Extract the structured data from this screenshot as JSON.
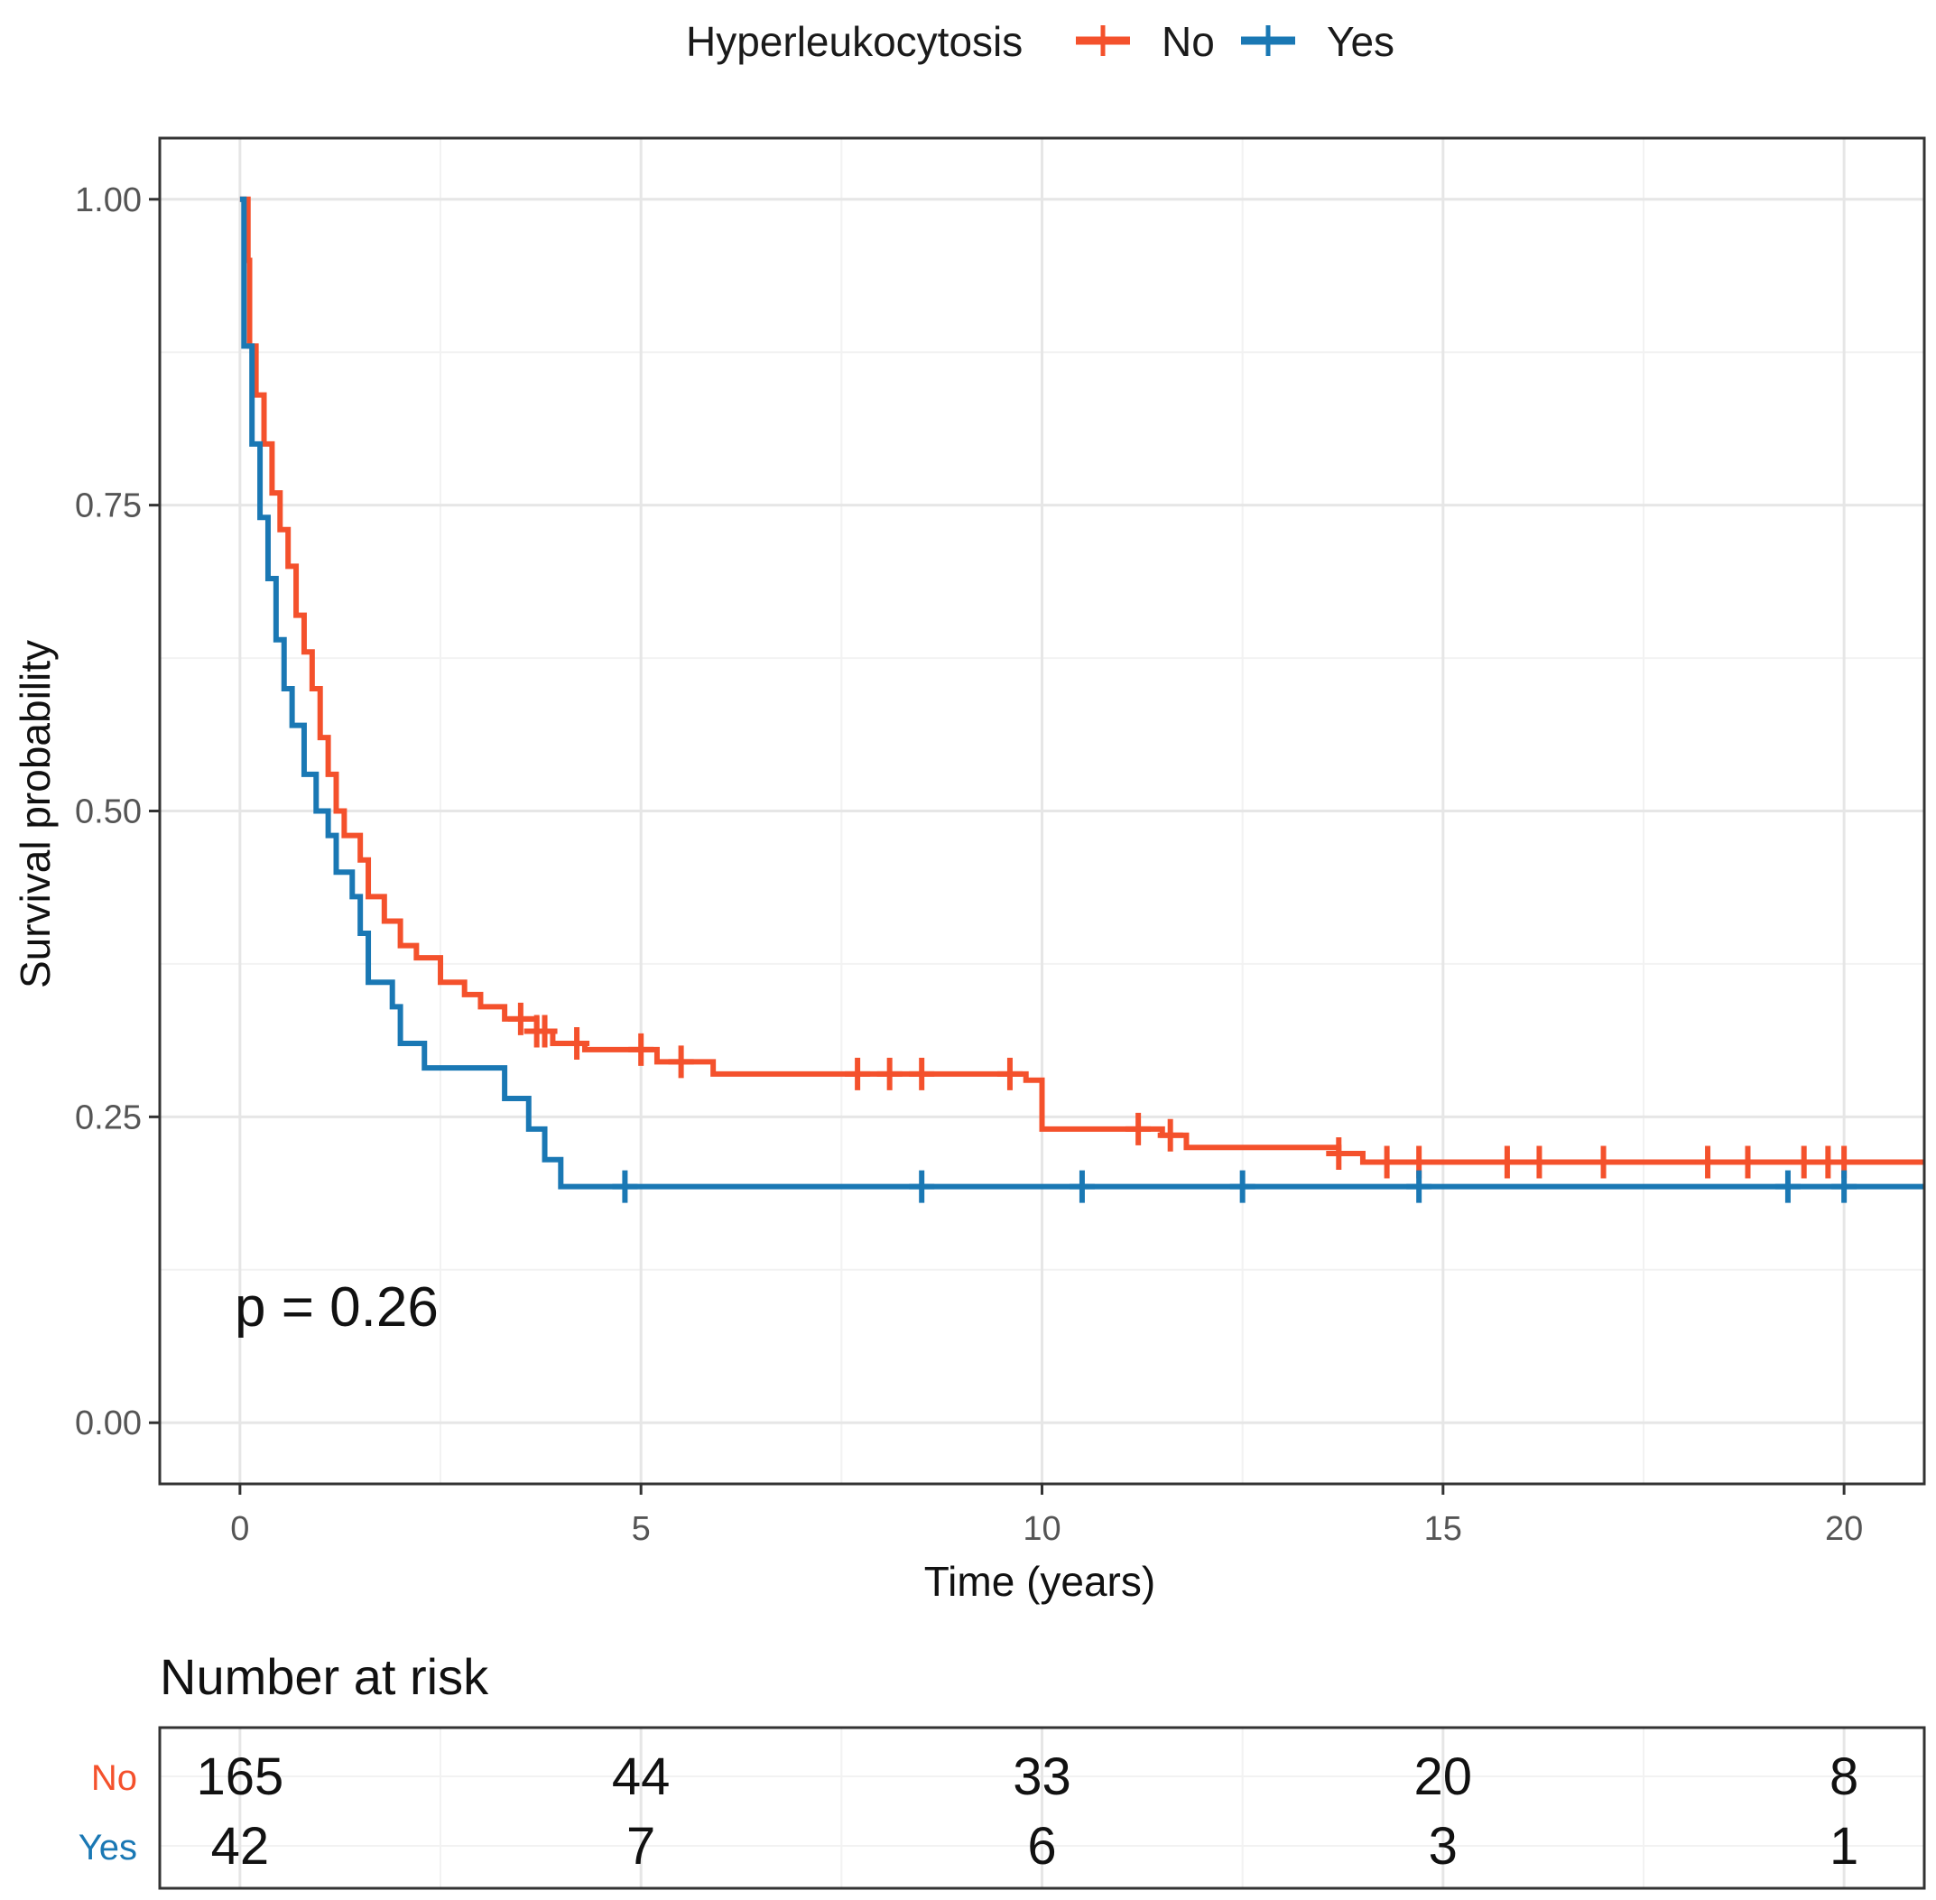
{
  "chart_data": {
    "type": "line",
    "subtype": "kaplan-meier",
    "legend": {
      "title": "Hyperleukocytosis",
      "position": "top",
      "entries": [
        "No",
        "Yes"
      ]
    },
    "xlabel": "Time (years)",
    "ylabel": "Survival probability",
    "xlim": [
      -1,
      21
    ],
    "ylim": [
      -0.05,
      1.05
    ],
    "x_ticks": [
      0,
      5,
      10,
      15,
      20
    ],
    "y_ticks": [
      0,
      0.25,
      0.5,
      0.75,
      1
    ],
    "y_tick_labels": [
      "0.00",
      "0.25",
      "0.50",
      "0.75",
      "1.00"
    ],
    "grid": true,
    "annotation": "p = 0.26",
    "series": [
      {
        "name": "No",
        "color": "#f4512c",
        "steps": [
          [
            0,
            1.0
          ],
          [
            0.1,
            0.95
          ],
          [
            0.12,
            0.88
          ],
          [
            0.2,
            0.84
          ],
          [
            0.3,
            0.8
          ],
          [
            0.4,
            0.76
          ],
          [
            0.5,
            0.73
          ],
          [
            0.6,
            0.7
          ],
          [
            0.7,
            0.66
          ],
          [
            0.8,
            0.63
          ],
          [
            0.9,
            0.6
          ],
          [
            1.0,
            0.56
          ],
          [
            1.1,
            0.53
          ],
          [
            1.2,
            0.5
          ],
          [
            1.3,
            0.48
          ],
          [
            1.5,
            0.46
          ],
          [
            1.6,
            0.43
          ],
          [
            1.8,
            0.41
          ],
          [
            2.0,
            0.39
          ],
          [
            2.2,
            0.38
          ],
          [
            2.5,
            0.36
          ],
          [
            2.8,
            0.35
          ],
          [
            3.0,
            0.34
          ],
          [
            3.3,
            0.33
          ],
          [
            3.7,
            0.32
          ],
          [
            3.9,
            0.31
          ],
          [
            4.3,
            0.305
          ],
          [
            5.2,
            0.295
          ],
          [
            5.9,
            0.285
          ],
          [
            9.8,
            0.28
          ],
          [
            10.0,
            0.24
          ],
          [
            11.5,
            0.235
          ],
          [
            11.8,
            0.225
          ],
          [
            13.7,
            0.22
          ],
          [
            14.0,
            0.213
          ],
          [
            21.0,
            0.213
          ]
        ],
        "censor_times": [
          3.5,
          3.7,
          3.8,
          4.2,
          5.0,
          5.5,
          7.7,
          8.1,
          8.5,
          9.6,
          11.2,
          11.6,
          13.7,
          14.3,
          14.7,
          15.8,
          16.2,
          17.0,
          18.3,
          18.8,
          19.5,
          19.8,
          20.0
        ]
      },
      {
        "name": "Yes",
        "color": "#1a78b4",
        "steps": [
          [
            0,
            1.0
          ],
          [
            0.05,
            0.88
          ],
          [
            0.15,
            0.8
          ],
          [
            0.25,
            0.74
          ],
          [
            0.35,
            0.69
          ],
          [
            0.45,
            0.64
          ],
          [
            0.55,
            0.6
          ],
          [
            0.65,
            0.57
          ],
          [
            0.8,
            0.53
          ],
          [
            0.95,
            0.5
          ],
          [
            1.1,
            0.48
          ],
          [
            1.2,
            0.45
          ],
          [
            1.4,
            0.43
          ],
          [
            1.5,
            0.4
          ],
          [
            1.6,
            0.36
          ],
          [
            1.9,
            0.34
          ],
          [
            2.0,
            0.31
          ],
          [
            2.3,
            0.29
          ],
          [
            3.3,
            0.265
          ],
          [
            3.6,
            0.24
          ],
          [
            3.8,
            0.215
          ],
          [
            4.0,
            0.193
          ],
          [
            21.0,
            0.193
          ]
        ],
        "censor_times": [
          4.8,
          8.5,
          10.5,
          12.5,
          14.7,
          19.3,
          20.0
        ]
      }
    ],
    "risk_table": {
      "title": "Number at risk",
      "times": [
        0,
        5,
        10,
        15,
        20
      ],
      "groups": [
        {
          "name": "No",
          "color": "#f4512c",
          "values": [
            165,
            44,
            33,
            20,
            8
          ]
        },
        {
          "name": "Yes",
          "color": "#1a78b4",
          "values": [
            42,
            7,
            6,
            3,
            1
          ]
        }
      ]
    }
  }
}
